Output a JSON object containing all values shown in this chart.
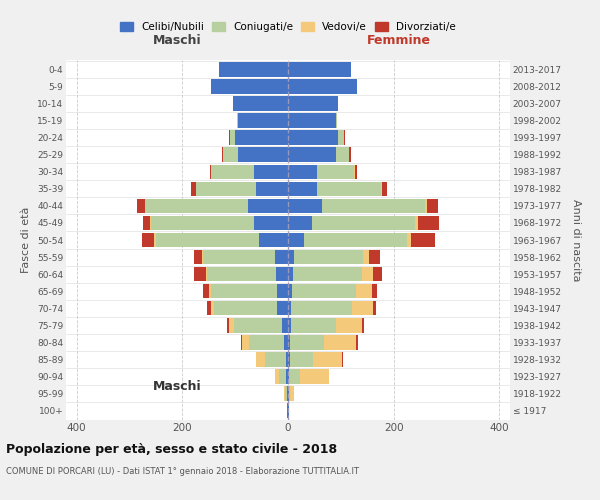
{
  "age_groups": [
    "100+",
    "95-99",
    "90-94",
    "85-89",
    "80-84",
    "75-79",
    "70-74",
    "65-69",
    "60-64",
    "55-59",
    "50-54",
    "45-49",
    "40-44",
    "35-39",
    "30-34",
    "25-29",
    "20-24",
    "15-19",
    "10-14",
    "5-9",
    "0-4"
  ],
  "birth_years": [
    "≤ 1917",
    "1918-1922",
    "1923-1927",
    "1928-1932",
    "1933-1937",
    "1938-1942",
    "1943-1947",
    "1948-1952",
    "1953-1957",
    "1958-1962",
    "1963-1967",
    "1968-1972",
    "1973-1977",
    "1978-1982",
    "1983-1987",
    "1988-1992",
    "1993-1997",
    "1998-2002",
    "2003-2007",
    "2008-2012",
    "2013-2017"
  ],
  "colors": {
    "celibi": "#4472c4",
    "coniugati": "#b8cfa0",
    "vedovi": "#f5c97a",
    "divorziati": "#c0392b"
  },
  "maschi": {
    "celibi": [
      1,
      2,
      3,
      4,
      8,
      12,
      20,
      20,
      23,
      25,
      55,
      65,
      75,
      60,
      65,
      95,
      100,
      95,
      105,
      145,
      130
    ],
    "coniugati": [
      0,
      4,
      14,
      40,
      65,
      90,
      120,
      125,
      130,
      135,
      195,
      195,
      195,
      115,
      80,
      28,
      10,
      2,
      0,
      0,
      0
    ],
    "vedovi": [
      0,
      2,
      8,
      16,
      14,
      10,
      6,
      4,
      3,
      2,
      4,
      2,
      0,
      0,
      0,
      0,
      0,
      0,
      0,
      0,
      0
    ],
    "divorziati": [
      0,
      0,
      0,
      0,
      2,
      4,
      8,
      12,
      22,
      16,
      22,
      12,
      15,
      8,
      3,
      2,
      1,
      0,
      0,
      0,
      0
    ]
  },
  "femmine": {
    "celibi": [
      1,
      1,
      2,
      3,
      4,
      5,
      6,
      8,
      10,
      12,
      30,
      45,
      65,
      55,
      55,
      90,
      95,
      90,
      95,
      130,
      120
    ],
    "coniugati": [
      0,
      3,
      20,
      45,
      65,
      85,
      115,
      120,
      130,
      130,
      195,
      195,
      195,
      120,
      70,
      25,
      10,
      2,
      0,
      0,
      0
    ],
    "vedovi": [
      1,
      8,
      55,
      55,
      60,
      50,
      40,
      30,
      20,
      12,
      8,
      5,
      3,
      2,
      1,
      0,
      0,
      0,
      0,
      0,
      0
    ],
    "divorziati": [
      0,
      0,
      0,
      1,
      3,
      4,
      5,
      10,
      18,
      20,
      45,
      40,
      20,
      10,
      4,
      4,
      2,
      0,
      0,
      0,
      0
    ]
  },
  "title": "Popolazione per età, sesso e stato civile - 2018",
  "subtitle": "COMUNE DI PORCARI (LU) - Dati ISTAT 1° gennaio 2018 - Elaborazione TUTTITALIA.IT",
  "xlabel_left": "Maschi",
  "xlabel_right": "Femmine",
  "ylabel_left": "Fasce di età",
  "ylabel_right": "Anni di nascita",
  "xlim": 420,
  "bg_color": "#f0f0f0",
  "plot_bg": "#ffffff",
  "legend_labels": [
    "Celibi/Nubili",
    "Coniugati/e",
    "Vedovi/e",
    "Divorziati/e"
  ]
}
